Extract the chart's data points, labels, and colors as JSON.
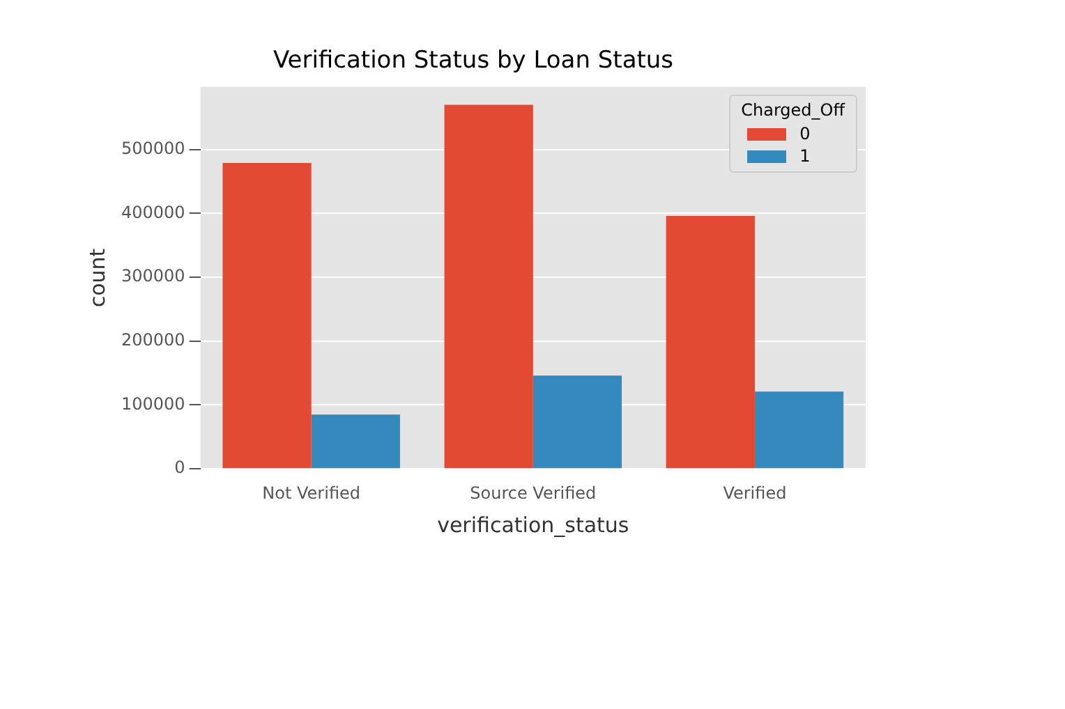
{
  "chart_data": {
    "type": "bar",
    "title": "Verification Status by Loan Status",
    "xlabel": "verification_status",
    "ylabel": "count",
    "legend_title": "Charged_Off",
    "categories": [
      "Not Verified",
      "Source Verified",
      "Verified"
    ],
    "series": [
      {
        "name": "0",
        "color": "#e24a33",
        "values": [
          479000,
          570000,
          396000
        ]
      },
      {
        "name": "1",
        "color": "#348abd",
        "values": [
          85000,
          146000,
          121000
        ]
      }
    ],
    "ylim": [
      0,
      598000
    ],
    "yticks": [
      0,
      100000,
      200000,
      300000,
      400000,
      500000
    ],
    "grid": "y",
    "legend": "top right"
  }
}
